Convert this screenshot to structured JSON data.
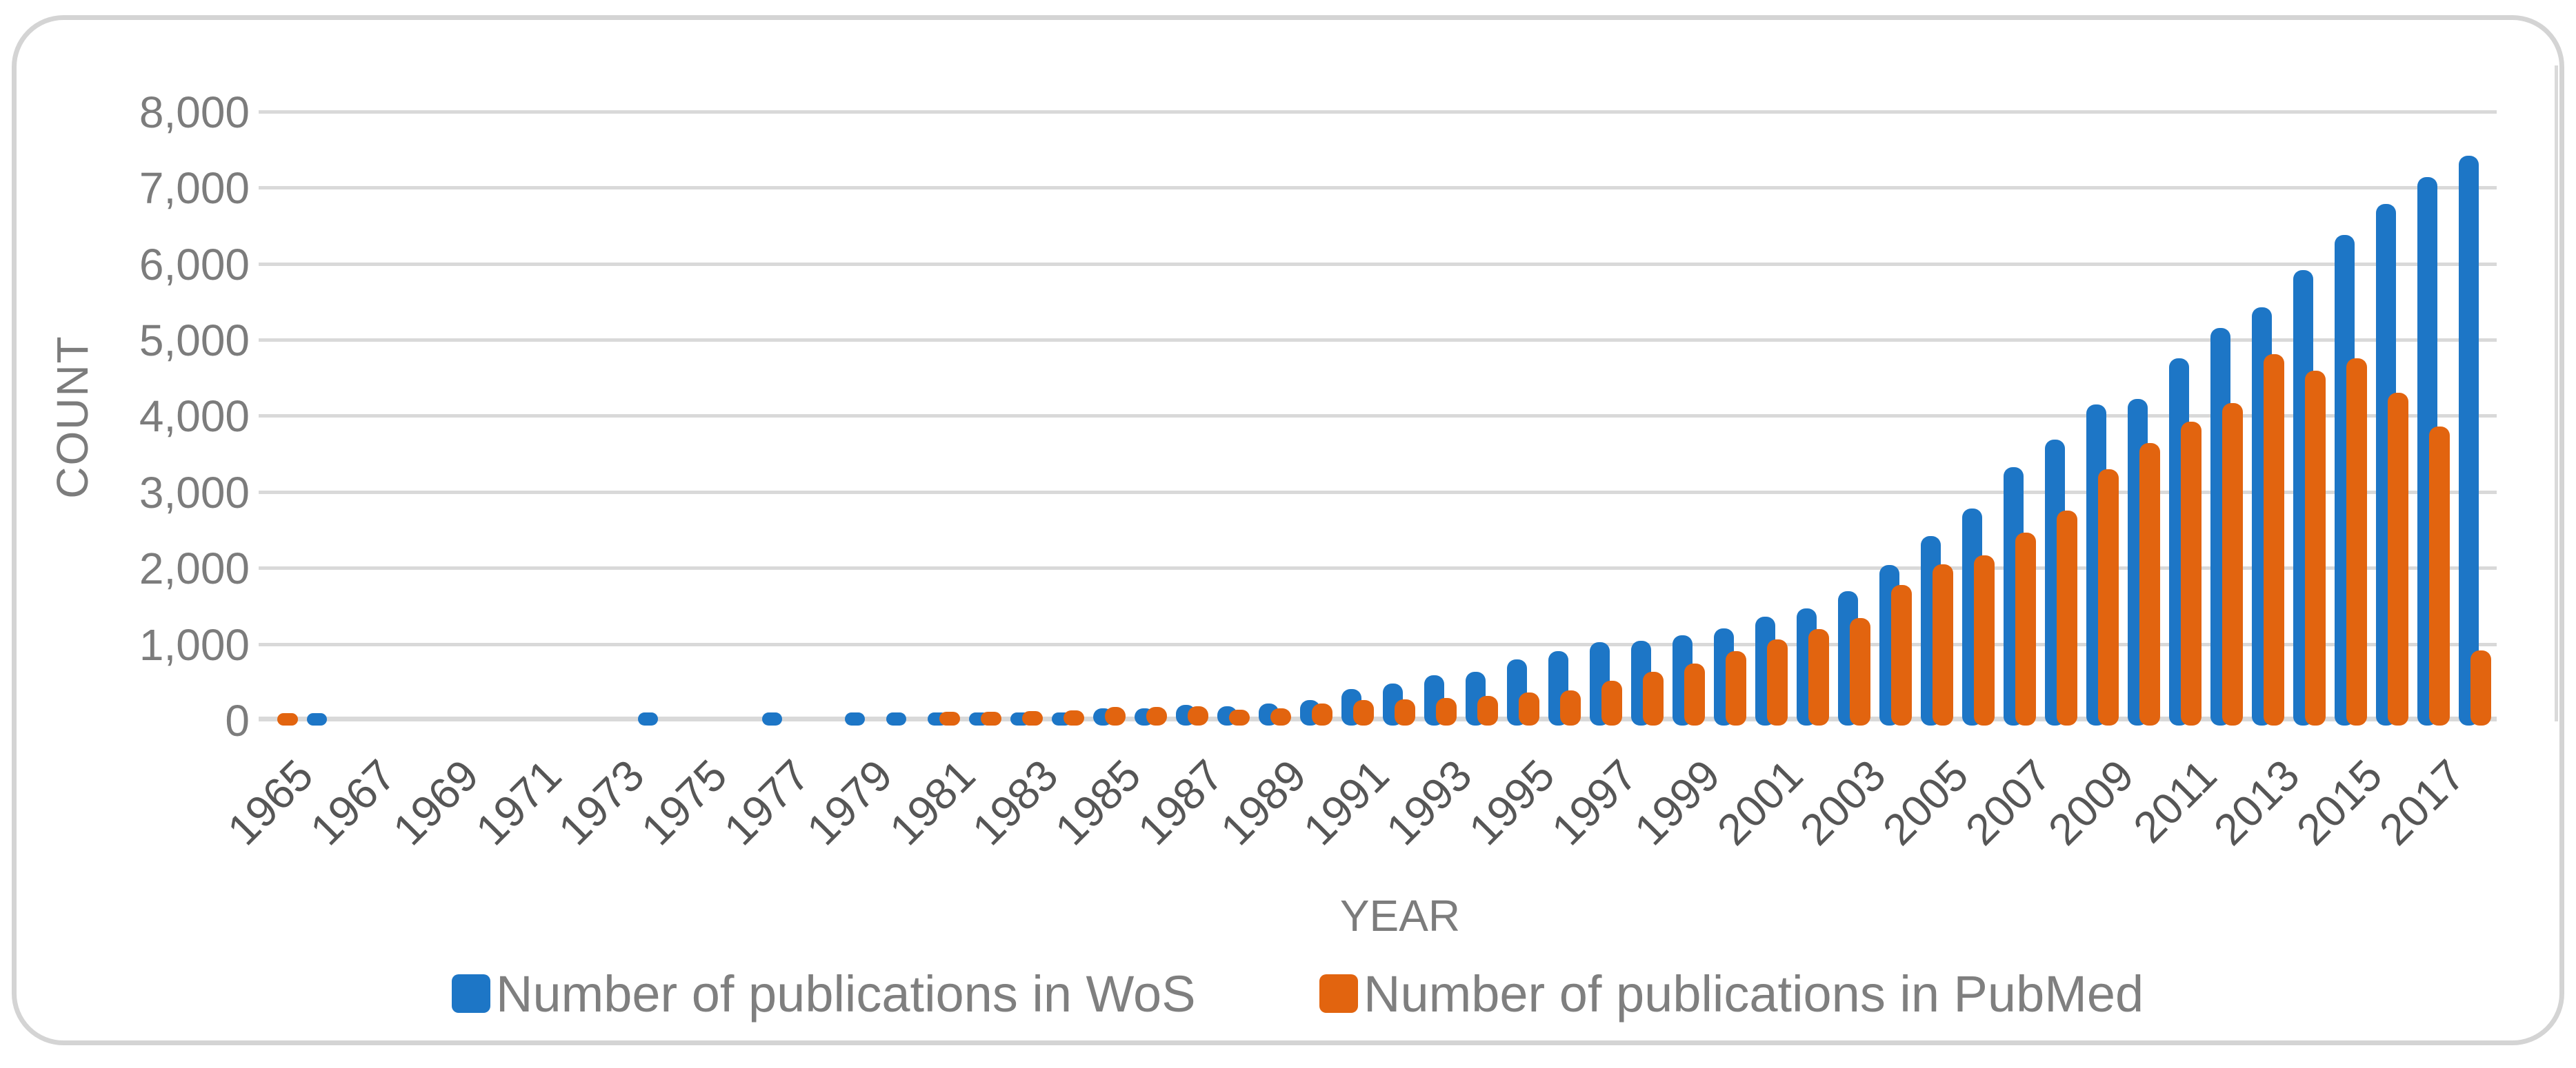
{
  "chart_data": {
    "type": "bar",
    "title": "",
    "xlabel": "YEAR",
    "ylabel": "COUNT",
    "ylim": [
      0,
      8000
    ],
    "ytick_step": 1000,
    "ytick_labels": [
      "0",
      "1,000",
      "2,000",
      "3,000",
      "4,000",
      "5,000",
      "6,000",
      "7,000",
      "8,000"
    ],
    "xtick_labels": [
      "1965",
      "1967",
      "1969",
      "1971",
      "1973",
      "1975",
      "1977",
      "1979",
      "1981",
      "1983",
      "1985",
      "1987",
      "1989",
      "1991",
      "1993",
      "1995",
      "1997",
      "1999",
      "2001",
      "2003",
      "2005",
      "2007",
      "2009",
      "2011",
      "2013",
      "2015",
      "2017"
    ],
    "categories": [
      1965,
      1966,
      1967,
      1968,
      1969,
      1970,
      1971,
      1972,
      1973,
      1974,
      1975,
      1976,
      1977,
      1978,
      1979,
      1980,
      1981,
      1982,
      1983,
      1984,
      1985,
      1986,
      1987,
      1988,
      1989,
      1990,
      1991,
      1992,
      1993,
      1994,
      1995,
      1996,
      1997,
      1998,
      1999,
      2000,
      2001,
      2002,
      2003,
      2004,
      2005,
      2006,
      2007,
      2008,
      2009,
      2010,
      2011,
      2012,
      2013,
      2014,
      2015,
      2016,
      2017,
      2018
    ],
    "series": [
      {
        "name": "Number of publications in WoS",
        "color": "#1D76C6",
        "values": [
          0,
          70,
          0,
          0,
          0,
          0,
          0,
          0,
          0,
          80,
          0,
          0,
          80,
          0,
          80,
          80,
          80,
          80,
          85,
          85,
          135,
          135,
          180,
          165,
          195,
          245,
          390,
          465,
          570,
          615,
          780,
          890,
          1005,
          1025,
          1095,
          1185,
          1340,
          1450,
          1675,
          2020,
          2400,
          2760,
          3305,
          3665,
          4130,
          4200,
          4740,
          5140,
          5410,
          5900,
          6360,
          6770,
          7120,
          7400
        ]
      },
      {
        "name": "Number of publications in PubMed",
        "color": "#E2640F",
        "values": [
          70,
          0,
          0,
          0,
          0,
          0,
          0,
          0,
          0,
          0,
          0,
          0,
          0,
          0,
          0,
          0,
          95,
          95,
          100,
          105,
          150,
          150,
          165,
          120,
          135,
          195,
          245,
          255,
          270,
          300,
          345,
          375,
          500,
          615,
          725,
          890,
          1040,
          1175,
          1320,
          1760,
          2025,
          2145,
          2445,
          2740,
          3280,
          3620,
          3900,
          4150,
          4790,
          4570,
          4735,
          4280,
          3845,
          900
        ]
      }
    ],
    "grid": true,
    "legend_position": "bottom",
    "gridline_color": "#D9D9D9",
    "axis_text_color": "#7C7C7C",
    "xtick_text_color": "#565656"
  }
}
